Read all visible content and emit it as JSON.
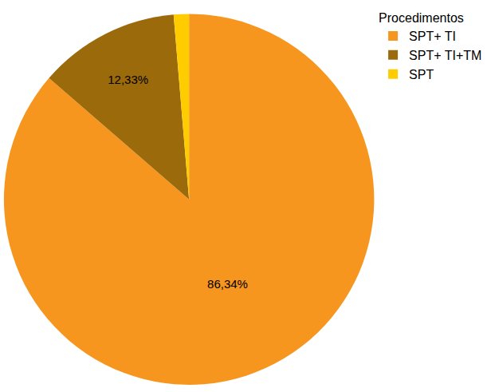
{
  "chart_data": {
    "type": "pie",
    "legend_title": "Procedimentos",
    "categories": [
      "SPT+ TI",
      "SPT+ TI+TM",
      "SPT"
    ],
    "values": [
      86.34,
      12.33,
      1.33
    ],
    "value_labels": [
      "86,34%",
      "12,33%",
      null
    ],
    "data_labels": true,
    "colors": [
      "#f7961e",
      "#9b6a0a",
      "#ffcc00"
    ],
    "legend": "top right"
  }
}
